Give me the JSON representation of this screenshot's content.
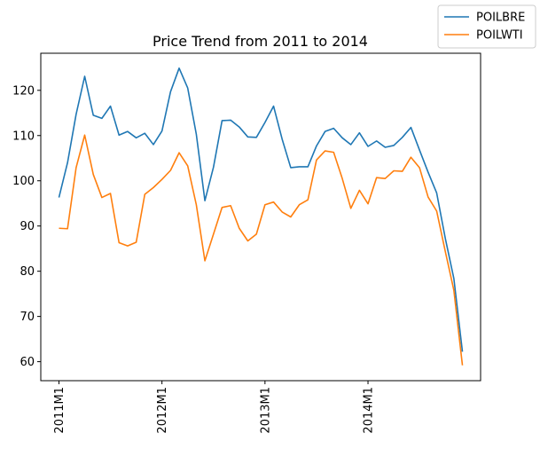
{
  "chart_data": {
    "type": "line",
    "title": "Price Trend from 2011 to 2014",
    "xlabel": "",
    "ylabel": "",
    "x": [
      "2011M1",
      "2011M2",
      "2011M3",
      "2011M4",
      "2011M5",
      "2011M6",
      "2011M7",
      "2011M8",
      "2011M9",
      "2011M10",
      "2011M11",
      "2011M12",
      "2012M1",
      "2012M2",
      "2012M3",
      "2012M4",
      "2012M5",
      "2012M6",
      "2012M7",
      "2012M8",
      "2012M9",
      "2012M10",
      "2012M11",
      "2012M12",
      "2013M1",
      "2013M2",
      "2013M3",
      "2013M4",
      "2013M5",
      "2013M6",
      "2013M7",
      "2013M8",
      "2013M9",
      "2013M10",
      "2013M11",
      "2013M12",
      "2014M1",
      "2014M2",
      "2014M3",
      "2014M4",
      "2014M5",
      "2014M6",
      "2014M7",
      "2014M8",
      "2014M9",
      "2014M10",
      "2014M11",
      "2014M12"
    ],
    "xticks": [
      "2011M1",
      "2012M1",
      "2013M1",
      "2014M1"
    ],
    "yticks": [
      60,
      70,
      80,
      90,
      100,
      110,
      120
    ],
    "ylim": [
      55.8,
      128.2
    ],
    "grid": false,
    "legend_position": "top-right, outside plot",
    "series": [
      {
        "name": "POILBRE",
        "color": "#1f77b4",
        "values": [
          96.3,
          104.0,
          114.7,
          123.1,
          114.5,
          113.8,
          116.5,
          110.1,
          110.9,
          109.5,
          110.5,
          108.0,
          111.0,
          119.7,
          124.9,
          120.5,
          110.3,
          95.6,
          103.0,
          113.3,
          113.4,
          111.9,
          109.7,
          109.6,
          112.9,
          116.5,
          109.2,
          102.9,
          103.1,
          103.1,
          107.7,
          110.9,
          111.6,
          109.5,
          108.0,
          110.6,
          107.6,
          108.8,
          107.4,
          107.8,
          109.6,
          111.8,
          106.8,
          101.9,
          97.3,
          87.3,
          78.4,
          62.2
        ]
      },
      {
        "name": "POILWTI",
        "color": "#ff7f0e",
        "values": [
          89.5,
          89.4,
          102.9,
          110.1,
          101.4,
          96.3,
          97.2,
          86.3,
          85.6,
          86.4,
          97.0,
          98.5,
          100.3,
          102.3,
          106.2,
          103.3,
          94.7,
          82.3,
          88.2,
          94.1,
          94.5,
          89.5,
          86.7,
          88.2,
          94.7,
          95.3,
          93.1,
          92.0,
          94.7,
          95.8,
          104.6,
          106.6,
          106.3,
          100.5,
          93.9,
          97.9,
          94.9,
          100.7,
          100.5,
          102.2,
          102.1,
          105.2,
          102.9,
          96.4,
          93.3,
          84.4,
          75.8,
          59.2
        ]
      }
    ]
  }
}
